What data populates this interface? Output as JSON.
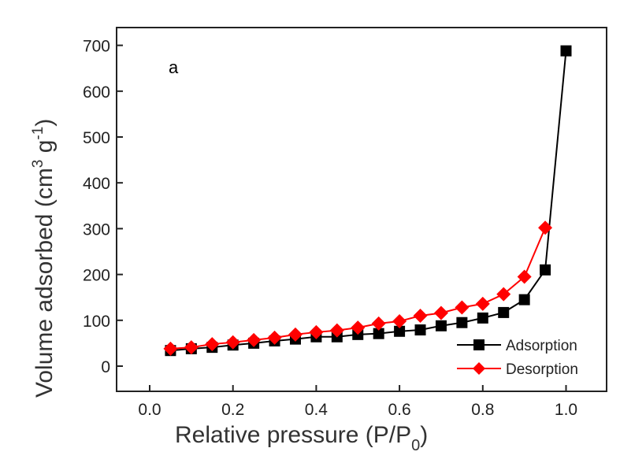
{
  "chart_data": {
    "type": "line",
    "title": "",
    "panel_label": "a",
    "xlabel": "Relative pressure (P/P0)",
    "xlabel_parts": {
      "main": "Relative pressure (P/P",
      "sub": "0",
      "end": ")"
    },
    "ylabel": "Volume adsorbed (cm3 g-1)",
    "ylabel_parts": {
      "main": "Volume adsorbed (cm",
      "sup1": "3",
      "mid": " g",
      "sup2": "-1",
      "end": ")"
    },
    "xlim": [
      -0.08,
      1.1
    ],
    "ylim": [
      -55,
      740
    ],
    "xticks": [
      "0.0",
      "0.2",
      "0.4",
      "0.6",
      "0.8",
      "1.0"
    ],
    "xtick_values": [
      0,
      0.2,
      0.4,
      0.6,
      0.8,
      1.0
    ],
    "yticks": [
      "0",
      "100",
      "200",
      "300",
      "400",
      "500",
      "600",
      "700"
    ],
    "ytick_values": [
      0,
      100,
      200,
      300,
      400,
      500,
      600,
      700
    ],
    "legend_position": "bottom-right",
    "series": [
      {
        "name": "Adsorption",
        "color": "#000000",
        "marker": "square",
        "x": [
          0.05,
          0.1,
          0.15,
          0.2,
          0.25,
          0.3,
          0.35,
          0.4,
          0.45,
          0.5,
          0.55,
          0.6,
          0.65,
          0.7,
          0.75,
          0.8,
          0.85,
          0.9,
          0.95,
          1.0
        ],
        "y": [
          34,
          38,
          41,
          46,
          50,
          55,
          59,
          64,
          64,
          69,
          71,
          76,
          79,
          88,
          95,
          105,
          117,
          145,
          210,
          688
        ]
      },
      {
        "name": "Desorption",
        "color": "#ff0000",
        "marker": "diamond",
        "x": [
          0.05,
          0.1,
          0.15,
          0.2,
          0.25,
          0.3,
          0.35,
          0.4,
          0.45,
          0.5,
          0.55,
          0.6,
          0.65,
          0.7,
          0.75,
          0.8,
          0.85,
          0.9,
          0.95
        ],
        "y": [
          38,
          41,
          48,
          52,
          57,
          62,
          69,
          74,
          78,
          84,
          93,
          98,
          110,
          116,
          128,
          136,
          157,
          195,
          302
        ]
      }
    ]
  }
}
